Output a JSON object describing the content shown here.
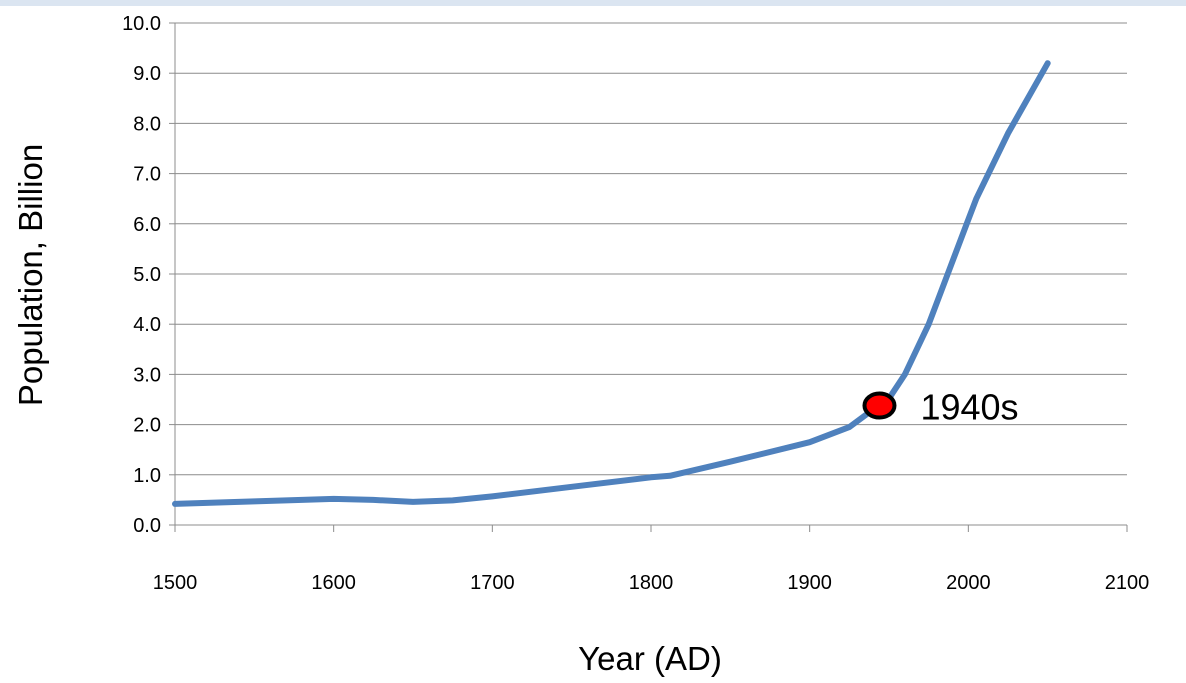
{
  "chart_data": {
    "type": "line",
    "title": "",
    "xlabel": "Year (AD)",
    "ylabel": "Population, Billion",
    "xlim": [
      1500,
      2100
    ],
    "ylim": [
      0,
      10
    ],
    "x_ticks": [
      "1500",
      "1600",
      "1700",
      "1800",
      "1900",
      "2000",
      "2100"
    ],
    "y_ticks": [
      "0.0",
      "1.0",
      "2.0",
      "3.0",
      "4.0",
      "5.0",
      "6.0",
      "7.0",
      "8.0",
      "9.0",
      "10.0"
    ],
    "grid": true,
    "legend": "none",
    "line_color": "#4F81BD",
    "series": [
      {
        "values_x": [
          1500,
          1550,
          1600,
          1625,
          1650,
          1675,
          1700,
          1750,
          1800,
          1812,
          1850,
          1900,
          1925,
          1940,
          1950,
          1960,
          1975,
          1987,
          1999,
          2005,
          2025,
          2050
        ],
        "values_y": [
          0.42,
          0.47,
          0.52,
          0.5,
          0.46,
          0.49,
          0.57,
          0.76,
          0.95,
          0.98,
          1.26,
          1.65,
          1.95,
          2.3,
          2.52,
          3.0,
          4.0,
          5.0,
          6.0,
          6.5,
          7.8,
          9.2
        ]
      }
    ],
    "annotations": [
      {
        "x": 1944,
        "y": 2.38,
        "text": "1940s",
        "marker_color": "#FF0000"
      }
    ]
  }
}
